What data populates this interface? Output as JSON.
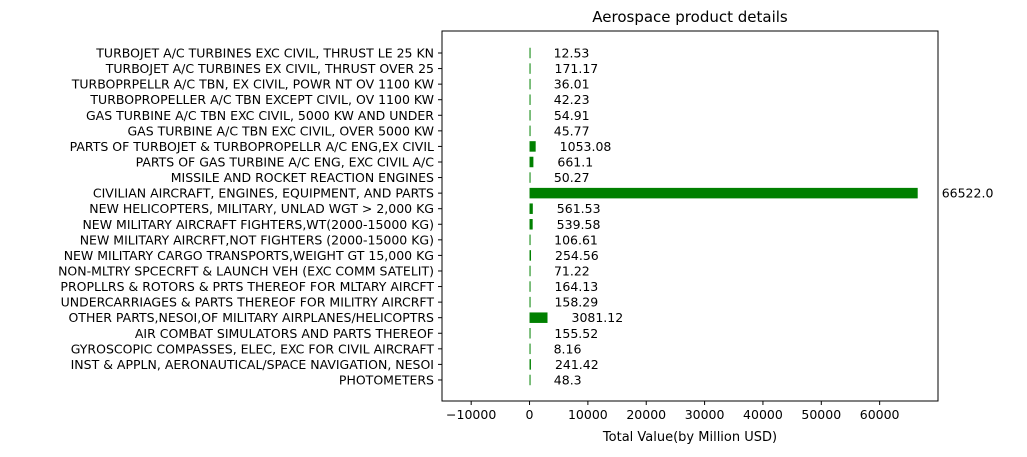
{
  "chart_data": {
    "type": "bar",
    "orientation": "horizontal",
    "title": "Aerospace product details",
    "xlabel": "Total Value(by Million USD)",
    "ylabel": "",
    "xlim": [
      -15000,
      70000
    ],
    "x_ticks": [
      -10000,
      0,
      10000,
      20000,
      30000,
      40000,
      50000,
      60000
    ],
    "x_tick_labels": [
      "−10000",
      "0",
      "10000",
      "20000",
      "30000",
      "40000",
      "50000",
      "60000"
    ],
    "bar_color": "#008000",
    "grid": false,
    "categories": [
      "TURBOJET A/C TURBINES EXC CIVIL, THRUST LE 25 KN",
      "TURBOJET A/C TURBINES EX  CIVIL, THRUST OVER 25",
      "TURBOPRPELLR A/C TBN, EX CIVIL, POWR NT OV 1100 KW",
      "TURBOPROPELLER A/C TBN EXCEPT CIVIL, OV 1100 KW",
      "GAS TURBINE A/C TBN EXC CIVIL, 5000 KW AND UNDER",
      "GAS TURBINE A/C TBN EXC CIVIL, OVER 5000 KW",
      "PARTS OF TURBOJET & TURBOPROPELLR A/C ENG,EX CIVIL",
      "PARTS OF GAS TURBINE A/C ENG, EXC CIVIL A/C",
      "MISSILE AND ROCKET REACTION ENGINES",
      "CIVILIAN AIRCRAFT, ENGINES, EQUIPMENT, AND PARTS",
      "NEW HELICOPTERS, MILITARY, UNLAD WGT > 2,000 KG",
      "NEW MILITARY AIRCRAFT FIGHTERS,WT(2000-15000 KG)",
      "NEW MILITARY AIRCRFT,NOT FIGHTERS (2000-15000 KG)",
      "NEW MILITARY CARGO TRANSPORTS,WEIGHT GT 15,000 KG",
      "NON-MLTRY SPCECRFT & LAUNCH VEH (EXC COMM SATELIT)",
      "PROPLLRS & ROTORS & PRTS THEREOF FOR MLTARY AIRCFT",
      "UNDERCARRIAGES & PARTS THEREOF FOR MILITRY AIRCRFT",
      "OTHER PARTS,NESOI,OF MILITARY AIRPLANES/HELICOPTRS",
      "AIR COMBAT SIMULATORS  AND PARTS THEREOF",
      "GYROSCOPIC COMPASSES, ELEC, EXC FOR CIVIL AIRCRAFT",
      "INST & APPLN, AERONAUTICAL/SPACE NAVIGATION, NESOI",
      "PHOTOMETERS"
    ],
    "values": [
      12.53,
      171.17,
      36.01,
      42.23,
      54.91,
      45.77,
      1053.08,
      661.1,
      50.27,
      66522.0,
      561.53,
      539.58,
      106.61,
      254.56,
      71.22,
      164.13,
      158.29,
      3081.12,
      155.52,
      8.16,
      241.42,
      48.3
    ],
    "value_labels": [
      "12.53",
      "171.17",
      "36.01",
      "42.23",
      "54.91",
      "45.77",
      "1053.08",
      "661.1",
      "50.27",
      "66522.0",
      "561.53",
      "539.58",
      "106.61",
      "254.56",
      "71.22",
      "164.13",
      "158.29",
      "3081.12",
      "155.52",
      "8.16",
      "241.42",
      "48.3"
    ]
  }
}
